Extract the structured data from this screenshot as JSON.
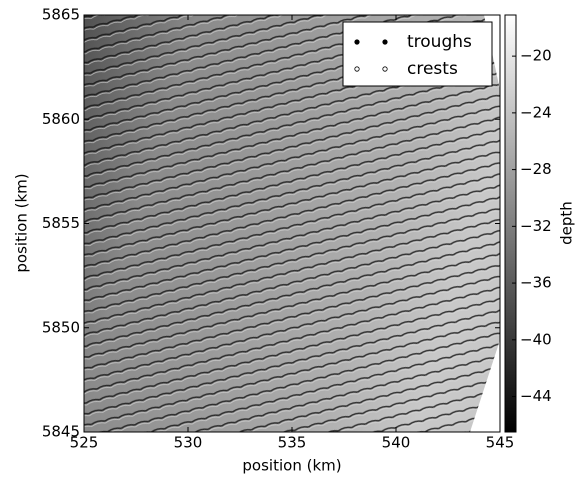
{
  "chart_data": {
    "type": "scatter",
    "x_label": "position (km)",
    "y_label": "position (km)",
    "xlim": [
      525,
      545
    ],
    "xticks": [
      525,
      530,
      535,
      540,
      545
    ],
    "ylim": [
      5845,
      5865
    ],
    "yticks": [
      5845,
      5850,
      5855,
      5860,
      5865
    ],
    "series": [
      {
        "name": "troughs",
        "color": "#000000"
      },
      {
        "name": "crests",
        "color": "#ffffff"
      }
    ],
    "legend": "upper right",
    "colorbar": {
      "label": "depth",
      "lim": [
        -46.5,
        -17.1
      ],
      "ticks": [
        {
          "value": -20,
          "label": "−20"
        },
        {
          "value": -24,
          "label": "−24"
        },
        {
          "value": -28,
          "label": "−28"
        },
        {
          "value": -32,
          "label": "−32"
        },
        {
          "value": -36,
          "label": "−36"
        },
        {
          "value": -40,
          "label": "−40"
        },
        {
          "value": -44,
          "label": "−44"
        }
      ]
    }
  }
}
